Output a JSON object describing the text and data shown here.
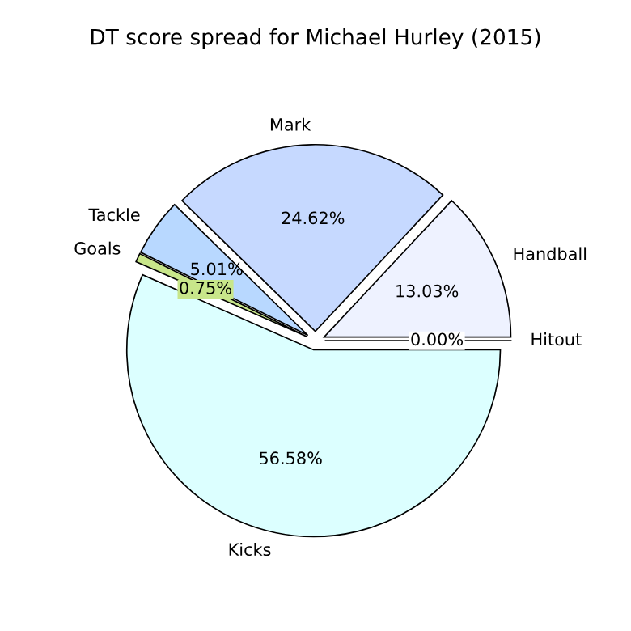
{
  "chart_data": {
    "type": "pie",
    "title": "DT score spread for Michael Hurley (2015)",
    "categories": [
      "Hitout",
      "Handball",
      "Mark",
      "Tackle",
      "Goals",
      "Kicks"
    ],
    "values": [
      0.0,
      13.03,
      24.62,
      5.01,
      0.75,
      56.58
    ],
    "colors": [
      "#ffffff",
      "#eef2ff",
      "#c6d9ff",
      "#b8d8ff",
      "#c8e68a",
      "#dcffff"
    ],
    "value_labels": [
      "0.00%",
      "13.03%",
      "24.62%",
      "5.01%",
      "0.75%",
      "56.58%"
    ]
  }
}
